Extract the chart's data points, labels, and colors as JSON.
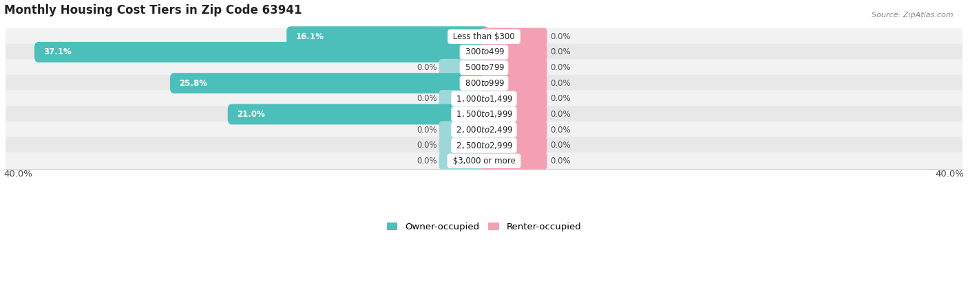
{
  "title": "Monthly Housing Cost Tiers in Zip Code 63941",
  "source": "Source: ZipAtlas.com",
  "categories": [
    "Less than $300",
    "$300 to $499",
    "$500 to $799",
    "$800 to $999",
    "$1,000 to $1,499",
    "$1,500 to $1,999",
    "$2,000 to $2,499",
    "$2,500 to $2,999",
    "$3,000 or more"
  ],
  "owner_values": [
    16.1,
    37.1,
    0.0,
    25.8,
    0.0,
    21.0,
    0.0,
    0.0,
    0.0
  ],
  "renter_values": [
    0.0,
    0.0,
    0.0,
    0.0,
    0.0,
    0.0,
    0.0,
    0.0,
    0.0
  ],
  "owner_color": "#4dbfbb",
  "owner_color_light": "#9dd8d8",
  "renter_color": "#f4a0b4",
  "bg_color_odd": "#f2f2f2",
  "bg_color_even": "#e8e8e8",
  "x_max": 40.0,
  "x_min": -40.0,
  "stub_size": 3.5,
  "renter_stub_size": 5.0,
  "title_fontsize": 12,
  "axis_fontsize": 9.5,
  "label_fontsize": 8.5,
  "category_fontsize": 8.5,
  "legend_fontsize": 9.5,
  "source_fontsize": 8
}
